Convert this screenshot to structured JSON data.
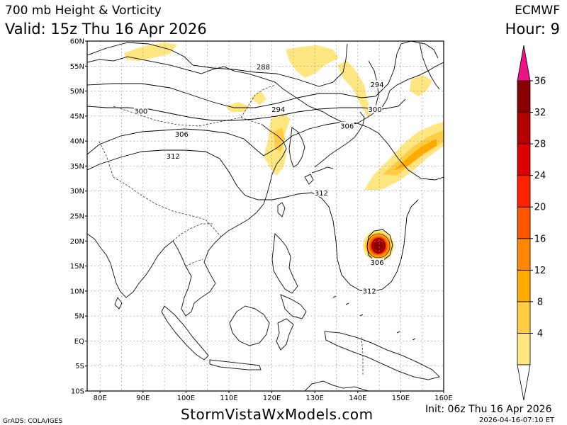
{
  "header": {
    "title": "700 mb Height & Vorticity",
    "valid": "Valid: 15z Thu 16 Apr 2026",
    "model": "ECMWF",
    "hour": "Hour: 9"
  },
  "footer": {
    "site": "StormVistaWxModels.com",
    "init": "Init: 06z Thu 16 Apr 2026",
    "stamp": "2026-04-16-07:10 ET",
    "credit": "GrADS: COLA/IGES"
  },
  "map": {
    "lat_labels": [
      "60N",
      "55N",
      "50N",
      "45N",
      "40N",
      "35N",
      "30N",
      "25N",
      "20N",
      "15N",
      "10N",
      "5N",
      "EQ",
      "5S",
      "10S"
    ],
    "lon_labels": [
      "80E",
      "90E",
      "100E",
      "110E",
      "120E",
      "130E",
      "140E",
      "150E",
      "160E"
    ],
    "contour_labels": [
      {
        "text": "288",
        "lon": 118.0,
        "lat": 54.8
      },
      {
        "text": "294",
        "lon": 121.5,
        "lat": 46.3
      },
      {
        "text": "294",
        "lon": 144.5,
        "lat": 51.3
      },
      {
        "text": "300",
        "lon": 89.5,
        "lat": 46.0
      },
      {
        "text": "300",
        "lon": 144.0,
        "lat": 46.3
      },
      {
        "text": "306",
        "lon": 99.0,
        "lat": 41.4
      },
      {
        "text": "306",
        "lon": 137.5,
        "lat": 43.0
      },
      {
        "text": "306",
        "lon": 144.5,
        "lat": 15.7
      },
      {
        "text": "312",
        "lon": 97.0,
        "lat": 37.0
      },
      {
        "text": "312",
        "lon": 131.5,
        "lat": 29.6
      },
      {
        "text": "312",
        "lon": 142.7,
        "lat": 10.0
      }
    ]
  },
  "colorbar": {
    "ticks": [
      "36",
      "32",
      "28",
      "24",
      "20",
      "16",
      "12",
      "8",
      "4"
    ],
    "colors": [
      "#ffe680",
      "#ffcc44",
      "#ffaa00",
      "#ff8800",
      "#ff5500",
      "#ff2200",
      "#dd0000",
      "#b30000",
      "#880000"
    ],
    "overflow_color": "#ee1188"
  }
}
